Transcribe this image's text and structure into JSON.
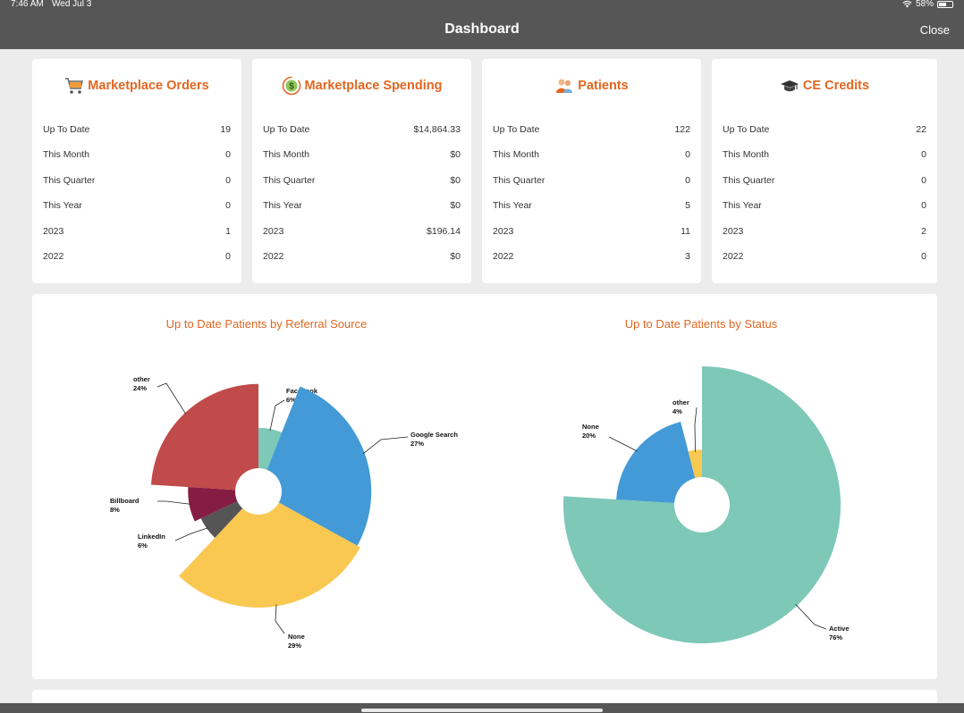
{
  "status": {
    "time": "7:46 AM",
    "date": "Wed Jul 3",
    "battery": "58%",
    "battery_level": 0.58
  },
  "nav": {
    "title": "Dashboard",
    "close": "Close"
  },
  "cards": [
    {
      "title": "Marketplace Orders",
      "icon": "cart-icon",
      "rows": [
        {
          "label": "Up To Date",
          "value": "19"
        },
        {
          "label": "This Month",
          "value": "0"
        },
        {
          "label": "This Quarter",
          "value": "0"
        },
        {
          "label": "This Year",
          "value": "0"
        },
        {
          "label": "2023",
          "value": "1"
        },
        {
          "label": "2022",
          "value": "0"
        }
      ]
    },
    {
      "title": "Marketplace Spending",
      "icon": "dollar-icon",
      "rows": [
        {
          "label": "Up To Date",
          "value": "$14,864.33"
        },
        {
          "label": "This Month",
          "value": "$0"
        },
        {
          "label": "This Quarter",
          "value": "$0"
        },
        {
          "label": "This Year",
          "value": "$0"
        },
        {
          "label": "2023",
          "value": "$196.14"
        },
        {
          "label": "2022",
          "value": "$0"
        }
      ]
    },
    {
      "title": "Patients",
      "icon": "patients-icon",
      "rows": [
        {
          "label": "Up To Date",
          "value": "122"
        },
        {
          "label": "This Month",
          "value": "0"
        },
        {
          "label": "This Quarter",
          "value": "0"
        },
        {
          "label": "This Year",
          "value": "5"
        },
        {
          "label": "2023",
          "value": "11"
        },
        {
          "label": "2022",
          "value": "3"
        }
      ]
    },
    {
      "title": "CE Credits",
      "icon": "graduation-cap-icon",
      "rows": [
        {
          "label": "Up To Date",
          "value": "22"
        },
        {
          "label": "This Month",
          "value": "0"
        },
        {
          "label": "This Quarter",
          "value": "0"
        },
        {
          "label": "This Year",
          "value": "0"
        },
        {
          "label": "2023",
          "value": "2"
        },
        {
          "label": "2022",
          "value": "0"
        }
      ]
    }
  ],
  "chart_data": [
    {
      "type": "pie",
      "title": "Up to Date Patients by Referral Source",
      "slices": [
        {
          "label": "Facebook",
          "value": 6,
          "color": "#7ec8b8"
        },
        {
          "label": "Google Search",
          "value": 27,
          "color": "#439ad6"
        },
        {
          "label": "None",
          "value": 29,
          "color": "#f9c851"
        },
        {
          "label": "LinkedIn",
          "value": 6,
          "color": "#555555"
        },
        {
          "label": "Billboard",
          "value": 8,
          "color": "#851d42"
        },
        {
          "label": "other",
          "value": 24,
          "color": "#c14a4a"
        }
      ]
    },
    {
      "type": "pie",
      "title": "Up to Date Patients by Status",
      "slices": [
        {
          "label": "Active",
          "value": 76,
          "color": "#7ec8b8"
        },
        {
          "label": "None",
          "value": 20,
          "color": "#439ad6"
        },
        {
          "label": "other",
          "value": 4,
          "color": "#f9c851"
        }
      ]
    }
  ]
}
